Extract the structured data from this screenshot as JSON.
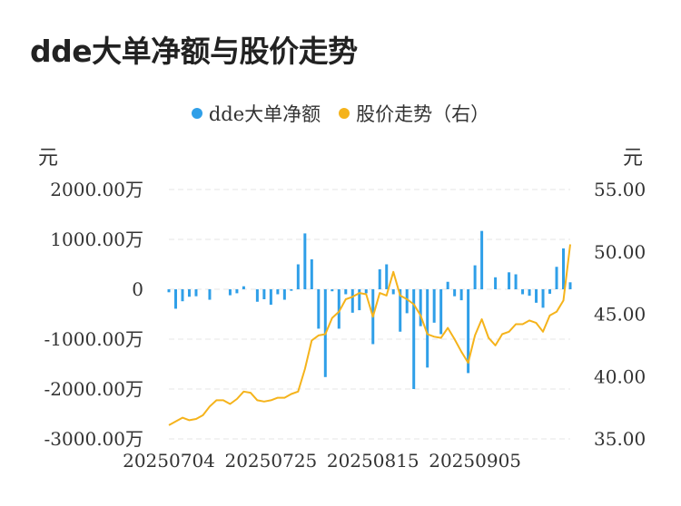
{
  "title": "dde大单净额与股价走势",
  "legend": [
    {
      "label": "dde大单净额",
      "color": "#2f9fe8"
    },
    {
      "label": "股价走势（右）",
      "color": "#f5b31b"
    }
  ],
  "units": {
    "left": "元",
    "right": "元"
  },
  "chart_data": {
    "type": "bar+line",
    "title": "dde大单净额与股价走势",
    "x_tick_labels": [
      "20250704",
      "20250725",
      "20250815",
      "20250905"
    ],
    "x_tick_indices": [
      0,
      15,
      30,
      45
    ],
    "left_axis": {
      "ticks": [
        2000,
        1000,
        0,
        -1000,
        -2000,
        -3000
      ],
      "tick_labels": [
        "2000.00万",
        "1000.00万",
        "0",
        "-1000.00万",
        "-2000.00万",
        "-3000.00万"
      ],
      "ylim": [
        -3000,
        2000
      ],
      "unit": "万"
    },
    "right_axis": {
      "ticks": [
        55,
        50,
        45,
        40,
        35
      ],
      "tick_labels": [
        "55.00",
        "50.00",
        "45.00",
        "40.00",
        "35.00"
      ],
      "ylim": [
        35,
        55
      ]
    },
    "grid": true,
    "legend_position": "top",
    "series": [
      {
        "name": "dde大单净额",
        "type": "bar",
        "axis": "left",
        "color": "#2f9fe8",
        "values": [
          -60,
          -390,
          -240,
          -150,
          -140,
          0,
          -210,
          0,
          0,
          -120,
          -80,
          60,
          0,
          -250,
          -200,
          -310,
          -100,
          -210,
          -30,
          500,
          1120,
          600,
          -790,
          -1760,
          -40,
          -790,
          -100,
          -470,
          -420,
          -80,
          -1100,
          400,
          500,
          -100,
          -850,
          -480,
          -2000,
          -740,
          -1570,
          -670,
          -900,
          150,
          -140,
          -220,
          -1680,
          480,
          1170,
          0,
          240,
          0,
          340,
          300,
          -100,
          -130,
          -270,
          -370,
          -90,
          450,
          820,
          140
        ]
      },
      {
        "name": "股价走势（右）",
        "type": "line",
        "axis": "right",
        "color": "#f5b31b",
        "values": [
          36.1,
          36.4,
          36.7,
          36.5,
          36.6,
          36.9,
          37.6,
          38.1,
          38.1,
          37.8,
          38.2,
          38.8,
          38.7,
          38.1,
          38.0,
          38.1,
          38.3,
          38.3,
          38.6,
          38.8,
          40.6,
          42.9,
          43.3,
          43.4,
          44.7,
          45.2,
          46.2,
          46.4,
          46.7,
          46.6,
          44.8,
          46.7,
          46.5,
          48.4,
          46.5,
          46.2,
          45.8,
          44.9,
          43.4,
          43.2,
          43.1,
          43.9,
          43.0,
          42.0,
          41.1,
          43.3,
          44.6,
          43.1,
          42.5,
          43.4,
          43.6,
          44.2,
          44.2,
          44.5,
          44.3,
          43.6,
          44.9,
          45.2,
          46.1,
          50.6
        ]
      }
    ]
  }
}
